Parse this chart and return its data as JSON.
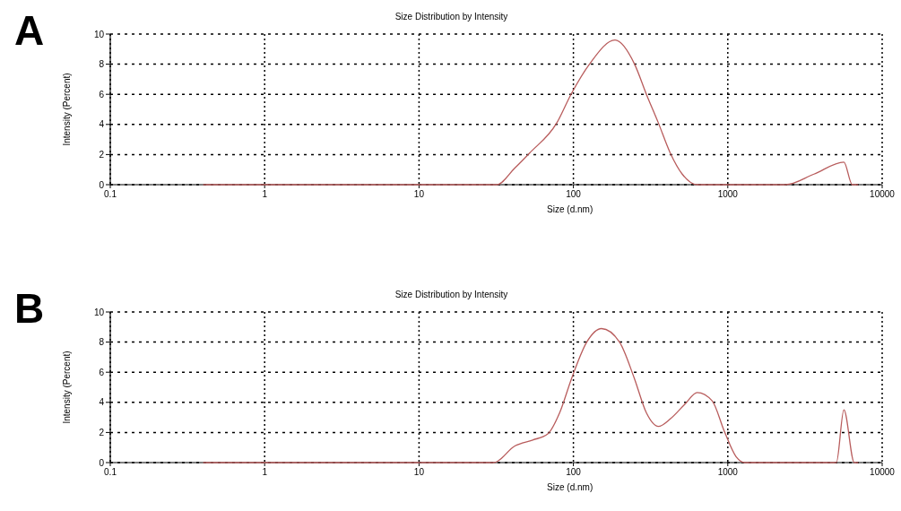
{
  "chart_data": [
    {
      "type": "line",
      "title": "Size Distribution by Intensity",
      "xlabel": "Size (d.nm)",
      "ylabel": "Intensity (Percent)",
      "annotations": [
        "A"
      ],
      "log": "x",
      "grid": true,
      "xlim": [
        0.1,
        10000
      ],
      "xticks": [
        0.1,
        1,
        10,
        100,
        1000,
        10000
      ],
      "ylim": [
        0,
        10
      ],
      "yticks": [
        0,
        2,
        4,
        6,
        8,
        10
      ],
      "series": [
        {
          "color": "#b85c5c",
          "x": [
            0.4,
            31.9,
            41.7,
            52,
            78,
            96.5,
            127,
            186,
            249,
            297,
            355,
            424,
            507,
            634,
            2366,
            3614,
            5650,
            6400,
            7000
          ],
          "values": [
            0,
            0,
            1.1,
            2.1,
            4.1,
            6,
            8,
            9.6,
            8,
            6,
            4.1,
            2.1,
            0.7,
            0,
            0,
            0.7,
            1.5,
            0,
            0
          ]
        }
      ]
    },
    {
      "type": "line",
      "title": "Size Distribution by Intensity",
      "xlabel": "Size (d.nm)",
      "ylabel": "Intensity (Percent)",
      "annotations": [
        "B"
      ],
      "log": "x",
      "grid": true,
      "xlim": [
        0.1,
        10000
      ],
      "xticks": [
        0.1,
        1,
        10,
        100,
        1000,
        10000
      ],
      "ylim": [
        0,
        10
      ],
      "yticks": [
        0,
        2,
        4,
        6,
        8,
        10
      ],
      "series": [
        {
          "color": "#b85c5c",
          "x": [
            0.4,
            30.5,
            41.7,
            54.5,
            68.2,
            81.4,
            97.4,
            122,
            152,
            199,
            248,
            297,
            355,
            424,
            530,
            634,
            792,
            948,
            1131,
            1296,
            5050,
            5650,
            6600,
            7000
          ],
          "values": [
            0,
            0,
            1.1,
            1.5,
            1.9,
            3.3,
            5.6,
            8,
            8.9,
            8,
            5.6,
            3.3,
            2.4,
            2.9,
            3.9,
            4.65,
            4.1,
            2.1,
            0.4,
            0,
            0,
            3.5,
            0,
            0
          ]
        }
      ]
    }
  ]
}
